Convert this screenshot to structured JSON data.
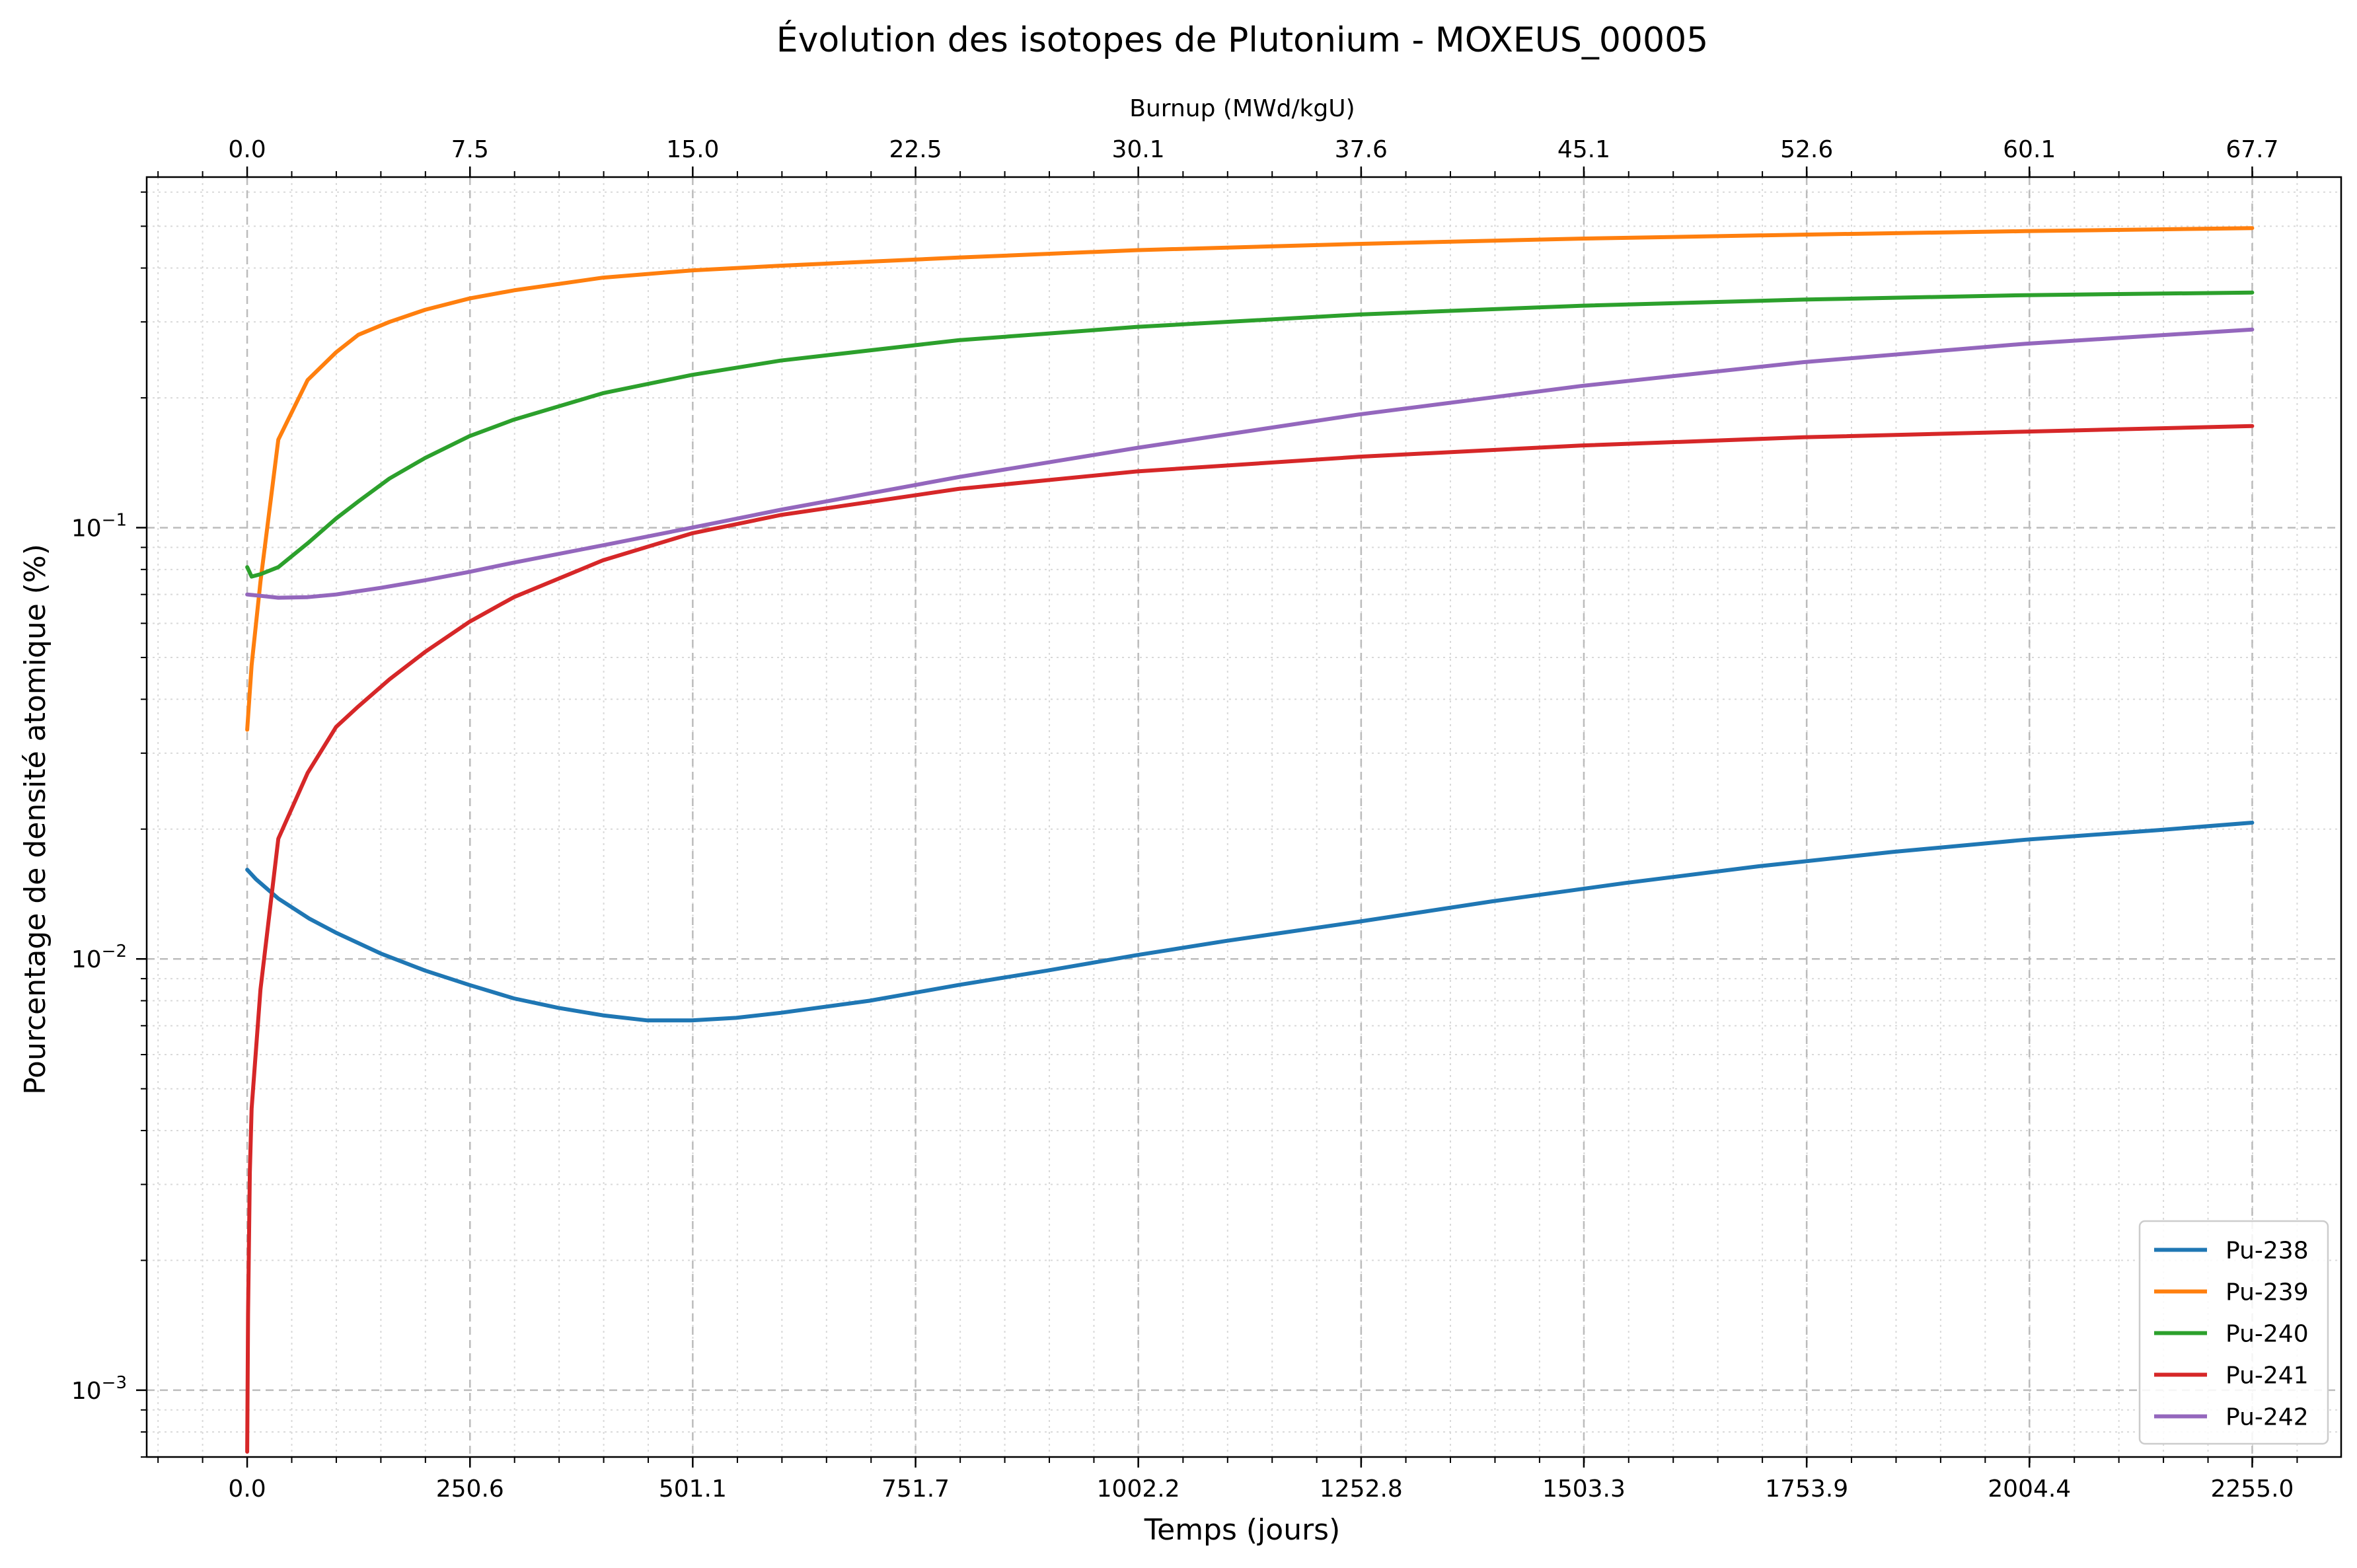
{
  "chart_data": {
    "type": "line",
    "title": "Évolution des isotopes de Plutonium - MOXEUS_00005",
    "xlabel": "Temps (jours)",
    "ylabel": "Pourcentage de densité atomique (%)",
    "top_xlabel": "Burnup (MWd/kgU)",
    "yscale": "log",
    "grid": true,
    "legend_position": "lower-right",
    "xlim": [
      -113,
      2355
    ],
    "ylim": [
      0.0007,
      0.65
    ],
    "x_ticks": [
      0.0,
      250.6,
      501.1,
      751.7,
      1002.2,
      1252.8,
      1503.3,
      1753.9,
      2004.4,
      2255.0
    ],
    "x_tick_labels": [
      "0.0",
      "250.6",
      "501.1",
      "751.7",
      "1002.2",
      "1252.8",
      "1503.3",
      "1753.9",
      "2004.4",
      "2255.0"
    ],
    "top_x_tick_labels": [
      "0.0",
      "7.5",
      "15.0",
      "22.5",
      "30.1",
      "37.6",
      "45.1",
      "52.6",
      "60.1",
      "67.7"
    ],
    "y_ticks": [
      0.001,
      0.01,
      0.1
    ],
    "y_tick_labels": [
      {
        "base": "10",
        "exp": "−3"
      },
      {
        "base": "10",
        "exp": "−2"
      },
      {
        "base": "10",
        "exp": "−1"
      }
    ],
    "series": [
      {
        "name": "Pu-238",
        "color": "#1f77b4",
        "points": [
          [
            0,
            0.0161
          ],
          [
            10,
            0.0153
          ],
          [
            35,
            0.0138
          ],
          [
            70,
            0.0124
          ],
          [
            100,
            0.0115
          ],
          [
            150,
            0.0103
          ],
          [
            200,
            0.0094
          ],
          [
            250,
            0.0087
          ],
          [
            300,
            0.0081
          ],
          [
            350,
            0.0077
          ],
          [
            400,
            0.0074
          ],
          [
            450,
            0.0072
          ],
          [
            500,
            0.0072
          ],
          [
            550,
            0.0073
          ],
          [
            600,
            0.0075
          ],
          [
            700,
            0.008
          ],
          [
            800,
            0.0087
          ],
          [
            900,
            0.0094
          ],
          [
            1000,
            0.0102
          ],
          [
            1100,
            0.011
          ],
          [
            1250,
            0.0122
          ],
          [
            1400,
            0.0136
          ],
          [
            1550,
            0.015
          ],
          [
            1700,
            0.0164
          ],
          [
            1850,
            0.0177
          ],
          [
            2000,
            0.0189
          ],
          [
            2150,
            0.0199
          ],
          [
            2255,
            0.0207
          ]
        ]
      },
      {
        "name": "Pu-239",
        "color": "#ff7f0e",
        "points": [
          [
            0,
            0.034
          ],
          [
            5,
            0.048
          ],
          [
            15,
            0.075
          ],
          [
            35,
            0.16
          ],
          [
            68,
            0.22
          ],
          [
            100,
            0.255
          ],
          [
            125,
            0.28
          ],
          [
            160,
            0.3
          ],
          [
            200,
            0.32
          ],
          [
            250,
            0.34
          ],
          [
            300,
            0.355
          ],
          [
            400,
            0.38
          ],
          [
            500,
            0.395
          ],
          [
            600,
            0.405
          ],
          [
            800,
            0.423
          ],
          [
            1000,
            0.44
          ],
          [
            1250,
            0.455
          ],
          [
            1500,
            0.468
          ],
          [
            1750,
            0.478
          ],
          [
            2000,
            0.487
          ],
          [
            2255,
            0.495
          ]
        ]
      },
      {
        "name": "Pu-240",
        "color": "#2ca02c",
        "points": [
          [
            0,
            0.081
          ],
          [
            5,
            0.077
          ],
          [
            15,
            0.078
          ],
          [
            35,
            0.081
          ],
          [
            68,
            0.092
          ],
          [
            100,
            0.105
          ],
          [
            125,
            0.115
          ],
          [
            160,
            0.13
          ],
          [
            200,
            0.145
          ],
          [
            250,
            0.163
          ],
          [
            300,
            0.178
          ],
          [
            400,
            0.205
          ],
          [
            500,
            0.226
          ],
          [
            600,
            0.244
          ],
          [
            800,
            0.272
          ],
          [
            1000,
            0.292
          ],
          [
            1250,
            0.312
          ],
          [
            1500,
            0.327
          ],
          [
            1750,
            0.338
          ],
          [
            2000,
            0.346
          ],
          [
            2255,
            0.351
          ]
        ]
      },
      {
        "name": "Pu-241",
        "color": "#d62728",
        "points": [
          [
            0,
            0.00072
          ],
          [
            1,
            0.0015
          ],
          [
            3,
            0.0032
          ],
          [
            5,
            0.0045
          ],
          [
            15,
            0.0085
          ],
          [
            35,
            0.019
          ],
          [
            68,
            0.027
          ],
          [
            100,
            0.0345
          ],
          [
            125,
            0.0385
          ],
          [
            160,
            0.0445
          ],
          [
            200,
            0.0515
          ],
          [
            250,
            0.0605
          ],
          [
            300,
            0.069
          ],
          [
            400,
            0.084
          ],
          [
            500,
            0.097
          ],
          [
            600,
            0.107
          ],
          [
            800,
            0.123
          ],
          [
            1000,
            0.135
          ],
          [
            1250,
            0.146
          ],
          [
            1500,
            0.155
          ],
          [
            1750,
            0.162
          ],
          [
            2000,
            0.167
          ],
          [
            2255,
            0.172
          ]
        ]
      },
      {
        "name": "Pu-242",
        "color": "#9467bd",
        "points": [
          [
            0,
            0.07
          ],
          [
            15,
            0.0695
          ],
          [
            35,
            0.0688
          ],
          [
            68,
            0.069
          ],
          [
            100,
            0.07
          ],
          [
            150,
            0.0725
          ],
          [
            200,
            0.0755
          ],
          [
            250,
            0.079
          ],
          [
            300,
            0.083
          ],
          [
            400,
            0.091
          ],
          [
            500,
            0.1
          ],
          [
            600,
            0.11
          ],
          [
            800,
            0.131
          ],
          [
            1000,
            0.153
          ],
          [
            1250,
            0.183
          ],
          [
            1500,
            0.213
          ],
          [
            1750,
            0.242
          ],
          [
            2000,
            0.267
          ],
          [
            2255,
            0.288
          ]
        ]
      }
    ]
  }
}
